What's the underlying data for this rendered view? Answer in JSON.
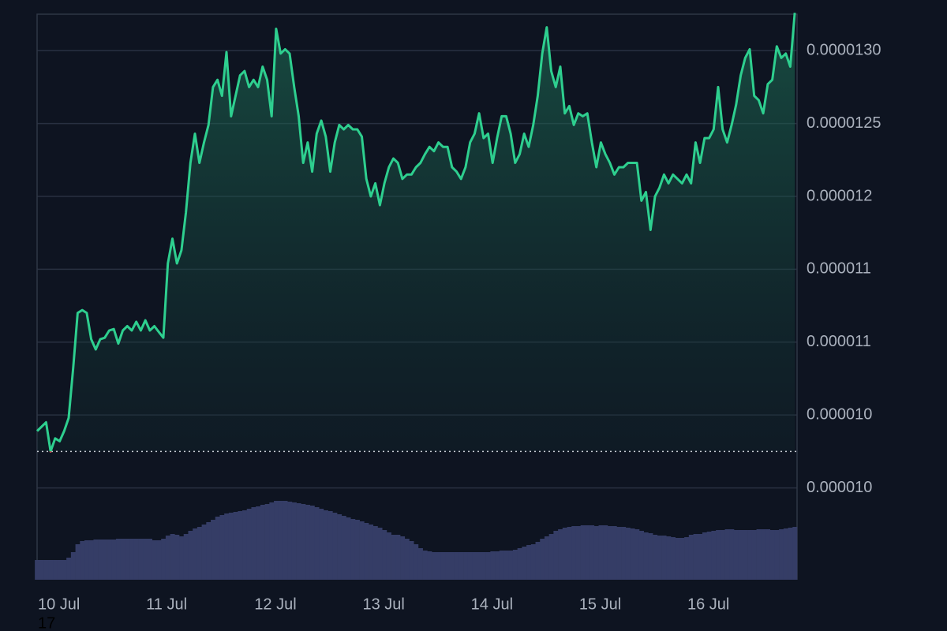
{
  "chart_data": {
    "type": "line",
    "color": "#2ecf8f",
    "below_color": "#e5484d",
    "baseline": 1.025e-05,
    "xlim": [
      0,
      168.5
    ],
    "xticks": [
      {
        "value": 0,
        "label": "10 Jul"
      },
      {
        "value": 24,
        "label": "11 Jul"
      },
      {
        "value": 48,
        "label": "12 Jul"
      },
      {
        "value": 72,
        "label": "13 Jul"
      },
      {
        "value": 96,
        "label": "14 Jul"
      },
      {
        "value": 120,
        "label": "15 Jul"
      },
      {
        "value": 144,
        "label": "16 Jul"
      }
    ],
    "extra_label": "17",
    "ylim": [
      9.37e-06,
      1.325e-05
    ],
    "yticks": [
      {
        "value": 1.3e-05,
        "label": "0.0000130"
      },
      {
        "value": 1.25e-05,
        "label": "0.0000125"
      },
      1.2e-05,
      {
        "value": 1.15e-05,
        "label": "0.000011"
      },
      1.1e-05,
      {
        "value": 1.05e-05,
        "label": "0.000010"
      },
      {
        "value": 1e-05,
        "label": "0.000010"
      }
    ],
    "grid": true,
    "values": [
      1.039e-05,
      1.042e-05,
      1.045e-05,
      1.025e-05,
      1.034e-05,
      1.032e-05,
      1.039e-05,
      1.048e-05,
      1.082e-05,
      1.12e-05,
      1.122e-05,
      1.12e-05,
      1.102e-05,
      1.095e-05,
      1.102e-05,
      1.103e-05,
      1.108e-05,
      1.109e-05,
      1.099e-05,
      1.108e-05,
      1.111e-05,
      1.108e-05,
      1.114e-05,
      1.108e-05,
      1.115e-05,
      1.108e-05,
      1.111e-05,
      1.107e-05,
      1.103e-05,
      1.154e-05,
      1.171e-05,
      1.154e-05,
      1.163e-05,
      1.189e-05,
      1.223e-05,
      1.243e-05,
      1.223e-05,
      1.237e-05,
      1.249e-05,
      1.275e-05,
      1.28e-05,
      1.269e-05,
      1.299e-05,
      1.255e-05,
      1.269e-05,
      1.283e-05,
      1.286e-05,
      1.275e-05,
      1.28e-05,
      1.275e-05,
      1.289e-05,
      1.28e-05,
      1.255e-05,
      1.315e-05,
      1.298e-05,
      1.301e-05,
      1.298e-05,
      1.275e-05,
      1.255e-05,
      1.223e-05,
      1.237e-05,
      1.217e-05,
      1.243e-05,
      1.252e-05,
      1.241e-05,
      1.217e-05,
      1.237e-05,
      1.249e-05,
      1.246e-05,
      1.249e-05,
      1.246e-05,
      1.246e-05,
      1.241e-05,
      1.212e-05,
      1.2e-05,
      1.209e-05,
      1.194e-05,
      1.209e-05,
      1.22e-05,
      1.226e-05,
      1.223e-05,
      1.212e-05,
      1.215e-05,
      1.215e-05,
      1.22e-05,
      1.223e-05,
      1.229e-05,
      1.234e-05,
      1.231e-05,
      1.237e-05,
      1.234e-05,
      1.234e-05,
      1.22e-05,
      1.217e-05,
      1.212e-05,
      1.22e-05,
      1.237e-05,
      1.243e-05,
      1.257e-05,
      1.24e-05,
      1.243e-05,
      1.223e-05,
      1.24e-05,
      1.255e-05,
      1.255e-05,
      1.243e-05,
      1.223e-05,
      1.229e-05,
      1.243e-05,
      1.234e-05,
      1.249e-05,
      1.269e-05,
      1.298e-05,
      1.316e-05,
      1.286e-05,
      1.275e-05,
      1.289e-05,
      1.257e-05,
      1.262e-05,
      1.249e-05,
      1.257e-05,
      1.255e-05,
      1.257e-05,
      1.237e-05,
      1.22e-05,
      1.237e-05,
      1.229e-05,
      1.223e-05,
      1.215e-05,
      1.22e-05,
      1.22e-05,
      1.223e-05,
      1.223e-05,
      1.223e-05,
      1.197e-05,
      1.203e-05,
      1.177e-05,
      1.2e-05,
      1.206e-05,
      1.215e-05,
      1.209e-05,
      1.215e-05,
      1.212e-05,
      1.209e-05,
      1.215e-05,
      1.209e-05,
      1.237e-05,
      1.223e-05,
      1.24e-05,
      1.24e-05,
      1.246e-05,
      1.275e-05,
      1.246e-05,
      1.237e-05,
      1.249e-05,
      1.263e-05,
      1.283e-05,
      1.295e-05,
      1.301e-05,
      1.269e-05,
      1.266e-05,
      1.257e-05,
      1.277e-05,
      1.28e-05,
      1.303e-05,
      1.295e-05,
      1.298e-05,
      1.289e-05,
      1.326e-05
    ],
    "volume_color": "#353d66",
    "volume_lim": [
      0,
      100
    ],
    "volume": [
      25,
      25,
      25,
      25,
      25,
      25,
      25,
      28,
      35,
      45,
      49,
      50,
      50,
      51,
      51,
      51,
      51,
      51,
      52,
      52,
      52,
      52,
      52,
      52,
      52,
      52,
      50,
      50,
      52,
      56,
      58,
      57,
      55,
      58,
      62,
      65,
      67,
      70,
      73,
      76,
      80,
      82,
      84,
      85,
      86,
      87,
      88,
      90,
      92,
      93,
      95,
      96,
      98,
      100,
      100,
      100,
      99,
      98,
      97,
      96,
      95,
      94,
      92,
      90,
      88,
      87,
      85,
      83,
      81,
      79,
      77,
      76,
      74,
      72,
      70,
      68,
      66,
      63,
      60,
      57,
      57,
      55,
      52,
      49,
      45,
      40,
      37,
      36,
      35,
      35,
      35,
      35,
      35,
      35,
      35,
      35,
      35,
      35,
      35,
      35,
      35,
      36,
      36,
      37,
      37,
      37,
      38,
      40,
      42,
      44,
      45,
      48,
      52,
      55,
      58,
      62,
      64,
      66,
      67,
      68,
      68,
      69,
      69,
      69,
      68,
      69,
      69,
      68,
      68,
      67,
      67,
      66,
      65,
      64,
      62,
      60,
      59,
      57,
      56,
      56,
      55,
      54,
      53,
      53,
      54,
      57,
      58,
      58,
      60,
      61,
      62,
      63,
      63,
      64,
      64,
      63,
      63,
      63,
      63,
      63,
      64,
      64,
      64,
      63,
      63,
      64,
      65,
      66,
      67
    ]
  }
}
